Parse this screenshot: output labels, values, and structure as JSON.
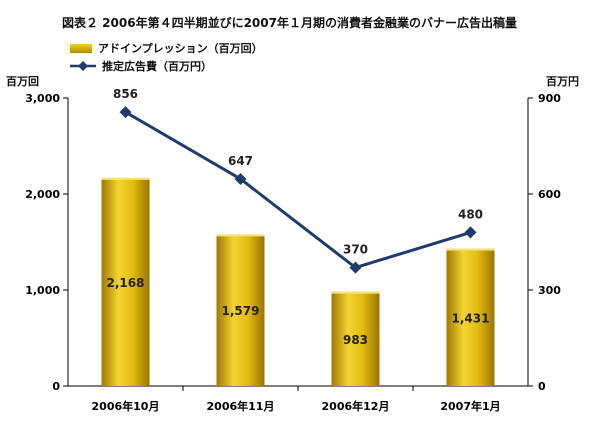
{
  "chart_data": {
    "type": "bar",
    "title": "図表２ 2006年第４四半期並びに2007年１月期の消費者金融業のバナー広告出稿量",
    "categories": [
      "2006年10月",
      "2006年11月",
      "2006年12月",
      "2007年1月"
    ],
    "series": [
      {
        "name": "アドインプレッション（百万回）",
        "type": "bar",
        "axis": "left",
        "values": [
          2168,
          1579,
          983,
          1431
        ],
        "labels": [
          "2,168",
          "1,579",
          "983",
          "1,431"
        ],
        "color": "#d4aa10"
      },
      {
        "name": "推定広告費（百万円）",
        "type": "line",
        "axis": "right",
        "values": [
          856,
          647,
          370,
          480
        ],
        "labels": [
          "856",
          "647",
          "370",
          "480"
        ],
        "color": "#1f3c6e"
      }
    ],
    "y_left": {
      "label": "百万回",
      "ylim": [
        0,
        3000
      ],
      "ticks": [
        0,
        1000,
        2000,
        3000
      ],
      "tick_labels": [
        "0",
        "1,000",
        "2,000",
        "3,000"
      ]
    },
    "y_right": {
      "label": "百万円",
      "ylim": [
        0,
        900
      ],
      "ticks": [
        0,
        300,
        600,
        900
      ],
      "tick_labels": [
        "0",
        "300",
        "600",
        "900"
      ]
    },
    "grid": false,
    "legend_position": "top-left"
  }
}
